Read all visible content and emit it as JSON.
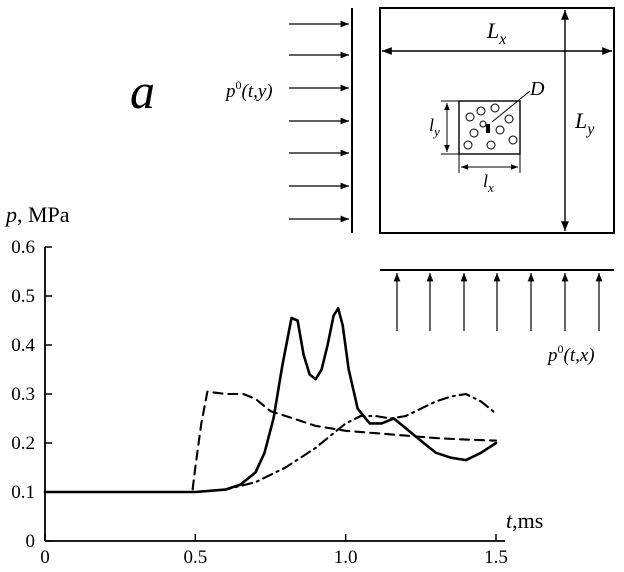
{
  "panel_label": "a",
  "diagram": {
    "left_load_label": {
      "p": "p",
      "sup": "0",
      "args": "(t,y)"
    },
    "bottom_load_label": {
      "p": "p",
      "sup": "0",
      "args": "(t,x)"
    },
    "Lx": {
      "L": "L",
      "sub": "x"
    },
    "Ly": {
      "L": "L",
      "sub": "y"
    },
    "lx": {
      "l": "l",
      "sub": "x"
    },
    "ly": {
      "l": "l",
      "sub": "y"
    },
    "D": "D"
  },
  "chart_data": {
    "type": "line",
    "title": "",
    "ylabel": {
      "var": "p",
      "unit": ", MPa"
    },
    "xlabel": {
      "var": "t",
      "unit": ",ms"
    },
    "xlim": [
      0,
      1.5
    ],
    "ylim": [
      0,
      0.6
    ],
    "xticks": [
      0,
      0.5,
      1.0,
      1.5
    ],
    "xtick_labels": [
      "0",
      "0.5",
      "1.0",
      "1.5"
    ],
    "yticks": [
      0,
      0.1,
      0.2,
      0.3,
      0.4,
      0.5,
      0.6
    ],
    "ytick_labels": [
      "0",
      "0.1",
      "0.2",
      "0.3",
      "0.4",
      "0.5",
      "0.6"
    ],
    "grid": false,
    "series": [
      {
        "style": "solid",
        "x": [
          0,
          0.5,
          0.6,
          0.65,
          0.7,
          0.73,
          0.76,
          0.79,
          0.82,
          0.84,
          0.86,
          0.88,
          0.9,
          0.92,
          0.94,
          0.96,
          0.975,
          0.99,
          1.01,
          1.04,
          1.08,
          1.12,
          1.16,
          1.2,
          1.25,
          1.3,
          1.35,
          1.4,
          1.45,
          1.5
        ],
        "y": [
          0.1,
          0.1,
          0.105,
          0.115,
          0.14,
          0.18,
          0.25,
          0.36,
          0.455,
          0.45,
          0.38,
          0.34,
          0.33,
          0.35,
          0.4,
          0.46,
          0.475,
          0.44,
          0.35,
          0.27,
          0.24,
          0.24,
          0.25,
          0.23,
          0.205,
          0.18,
          0.17,
          0.165,
          0.18,
          0.2
        ]
      },
      {
        "style": "dashed",
        "x": [
          0,
          0.49,
          0.5,
          0.52,
          0.54,
          0.6,
          0.66,
          0.7,
          0.75,
          0.8,
          0.85,
          0.9,
          1.0,
          1.1,
          1.2,
          1.3,
          1.4,
          1.5
        ],
        "y": [
          0.1,
          0.1,
          0.15,
          0.24,
          0.305,
          0.3,
          0.3,
          0.29,
          0.265,
          0.255,
          0.245,
          0.235,
          0.225,
          0.22,
          0.215,
          0.21,
          0.207,
          0.205
        ]
      },
      {
        "style": "dashdot",
        "x": [
          0,
          0.5,
          0.6,
          0.7,
          0.8,
          0.9,
          0.95,
          1.0,
          1.05,
          1.1,
          1.15,
          1.2,
          1.25,
          1.3,
          1.35,
          1.4,
          1.45,
          1.5
        ],
        "y": [
          0.1,
          0.1,
          0.105,
          0.12,
          0.15,
          0.19,
          0.215,
          0.24,
          0.255,
          0.255,
          0.25,
          0.255,
          0.27,
          0.285,
          0.295,
          0.3,
          0.285,
          0.26
        ]
      }
    ]
  }
}
